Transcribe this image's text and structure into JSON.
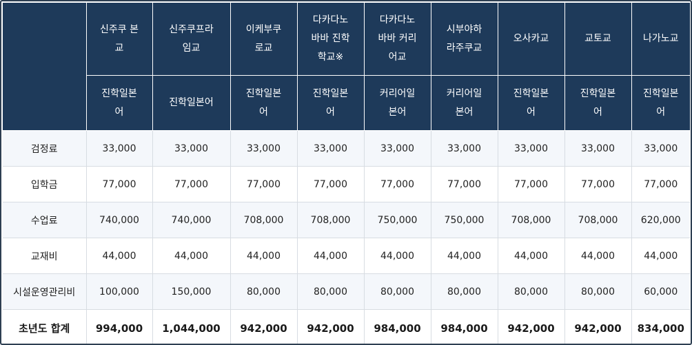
{
  "schools": [
    {
      "name": "신주쿠 본교",
      "course": "진학일본어"
    },
    {
      "name": "신주쿠프라임교",
      "course": "진학일본어"
    },
    {
      "name": "이케부쿠로교",
      "course": "진학일본어"
    },
    {
      "name": "다카다노바바 진학학교※",
      "course": "진학일본어"
    },
    {
      "name": "다카다노바바 커리어교",
      "course": "커리어일본어"
    },
    {
      "name": "시부야하라주쿠교",
      "course": "커리어일본어"
    },
    {
      "name": "오사카교",
      "course": "진학일본어"
    },
    {
      "name": "교토교",
      "course": "진학일본어"
    },
    {
      "name": "나가노교",
      "course": "진학일본어"
    }
  ],
  "rows": [
    {
      "label": "검정료",
      "values": [
        "33,000",
        "33,000",
        "33,000",
        "33,000",
        "33,000",
        "33,000",
        "33,000",
        "33,000",
        "33,000"
      ]
    },
    {
      "label": "입학금",
      "values": [
        "77,000",
        "77,000",
        "77,000",
        "77,000",
        "77,000",
        "77,000",
        "77,000",
        "77,000",
        "77,000"
      ]
    },
    {
      "label": "수업료",
      "values": [
        "740,000",
        "740,000",
        "708,000",
        "708,000",
        "750,000",
        "750,000",
        "708,000",
        "708,000",
        "620,000"
      ]
    },
    {
      "label": "교재비",
      "values": [
        "44,000",
        "44,000",
        "44,000",
        "44,000",
        "44,000",
        "44,000",
        "44,000",
        "44,000",
        "44,000"
      ]
    },
    {
      "label": "시설운영관리비",
      "values": [
        "100,000",
        "150,000",
        "80,000",
        "80,000",
        "80,000",
        "80,000",
        "80,000",
        "80,000",
        "60,000"
      ]
    }
  ],
  "total": {
    "label": "초년도 합계",
    "values": [
      "994,000",
      "1,044,000",
      "942,000",
      "942,000",
      "984,000",
      "984,000",
      "942,000",
      "942,000",
      "834,000"
    ]
  }
}
